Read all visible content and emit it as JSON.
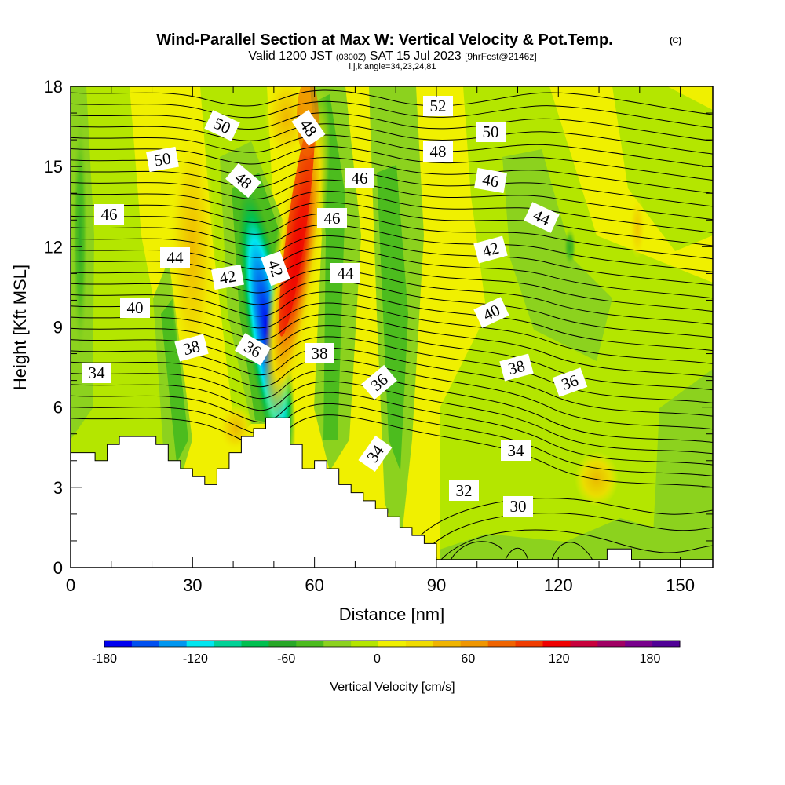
{
  "chart_data": {
    "type": "heatmap",
    "title": "Wind-Parallel Section at Max W: Vertical Velocity & Pot.Temp.",
    "title_mark": "(C)",
    "subtitle_parts": [
      "Valid 1200 JST",
      "(0300Z)",
      "SAT 15 Jul 2023",
      "[9hrFcst@2146z]"
    ],
    "subtitle2": "i,j,k,angle=34,23,24,81",
    "xlabel": "Distance [nm]",
    "ylabel": "Height [Kft MSL]",
    "xlim": [
      0,
      158
    ],
    "ylim": [
      0,
      18
    ],
    "x_ticks": [
      "0",
      "30",
      "60",
      "90",
      "120",
      "150"
    ],
    "y_ticks": [
      "0",
      "3",
      "6",
      "9",
      "12",
      "15",
      "18"
    ],
    "colorbar": {
      "label": "Vertical Velocity [cm/s]",
      "tick_labels": [
        "-180",
        "-120",
        "-60",
        "0",
        "60",
        "120",
        "180"
      ],
      "colors": [
        "#0000f0",
        "#0050f0",
        "#0096f0",
        "#00e6f0",
        "#00d296",
        "#00c050",
        "#28a828",
        "#4cbc1e",
        "#8cd21e",
        "#b4e600",
        "#f0f000",
        "#f0dc00",
        "#f0b400",
        "#f09600",
        "#f06400",
        "#f03c00",
        "#f00000",
        "#c8003c",
        "#a00064",
        "#78008c",
        "#500096"
      ]
    },
    "terrain_kft": [
      [
        0,
        4.3
      ],
      [
        6,
        4.3
      ],
      [
        6,
        4.0
      ],
      [
        9,
        4.0
      ],
      [
        9,
        4.6
      ],
      [
        12,
        4.6
      ],
      [
        12,
        4.9
      ],
      [
        21,
        4.9
      ],
      [
        21,
        4.6
      ],
      [
        24,
        4.6
      ],
      [
        24,
        4.0
      ],
      [
        27,
        4.0
      ],
      [
        27,
        3.7
      ],
      [
        30,
        3.7
      ],
      [
        30,
        3.4
      ],
      [
        33,
        3.4
      ],
      [
        33,
        3.1
      ],
      [
        36,
        3.1
      ],
      [
        36,
        3.7
      ],
      [
        39,
        3.7
      ],
      [
        39,
        4.3
      ],
      [
        42,
        4.3
      ],
      [
        42,
        4.9
      ],
      [
        45,
        4.9
      ],
      [
        45,
        5.2
      ],
      [
        48,
        5.2
      ],
      [
        48,
        5.6
      ],
      [
        54,
        5.6
      ],
      [
        54,
        4.6
      ],
      [
        57,
        4.6
      ],
      [
        57,
        3.7
      ],
      [
        60,
        3.7
      ],
      [
        60,
        4.0
      ],
      [
        63,
        4.0
      ],
      [
        63,
        3.7
      ],
      [
        66,
        3.7
      ],
      [
        66,
        3.1
      ],
      [
        69,
        3.1
      ],
      [
        69,
        2.8
      ],
      [
        72,
        2.8
      ],
      [
        72,
        2.5
      ],
      [
        75,
        2.5
      ],
      [
        75,
        2.2
      ],
      [
        78,
        2.2
      ],
      [
        78,
        1.9
      ],
      [
        81,
        1.9
      ],
      [
        81,
        1.5
      ],
      [
        84,
        1.5
      ],
      [
        84,
        1.2
      ],
      [
        87,
        1.2
      ],
      [
        87,
        0.9
      ],
      [
        90,
        0.9
      ],
      [
        90,
        0.3
      ],
      [
        132,
        0.3
      ],
      [
        132,
        0.7
      ],
      [
        138,
        0.7
      ],
      [
        138,
        0.3
      ],
      [
        158,
        0.3
      ]
    ],
    "w_features_cm_s": [
      {
        "x": 48,
        "z": 8.5,
        "w": -175
      },
      {
        "x": 56,
        "z": 11.5,
        "w": 150
      },
      {
        "x": 53,
        "z": 16.5,
        "w": 60
      },
      {
        "x": 30,
        "z": 9,
        "w": 40
      },
      {
        "x": 40,
        "z": 11,
        "w": -50
      },
      {
        "x": 3,
        "z": 10,
        "w": -50
      },
      {
        "x": 78,
        "z": 11,
        "w": -45
      },
      {
        "x": 106,
        "z": 11,
        "w": -20
      },
      {
        "x": 128,
        "z": 3.5,
        "w": 40
      }
    ],
    "contour_label_values_C": [
      "52",
      "50",
      "50",
      "50",
      "48",
      "48",
      "48",
      "46",
      "46",
      "46",
      "46",
      "44",
      "44",
      "44",
      "42",
      "42",
      "42",
      "40",
      "40",
      "38",
      "38",
      "38",
      "36",
      "36",
      "36",
      "34",
      "34",
      "34",
      "32",
      "30"
    ]
  }
}
